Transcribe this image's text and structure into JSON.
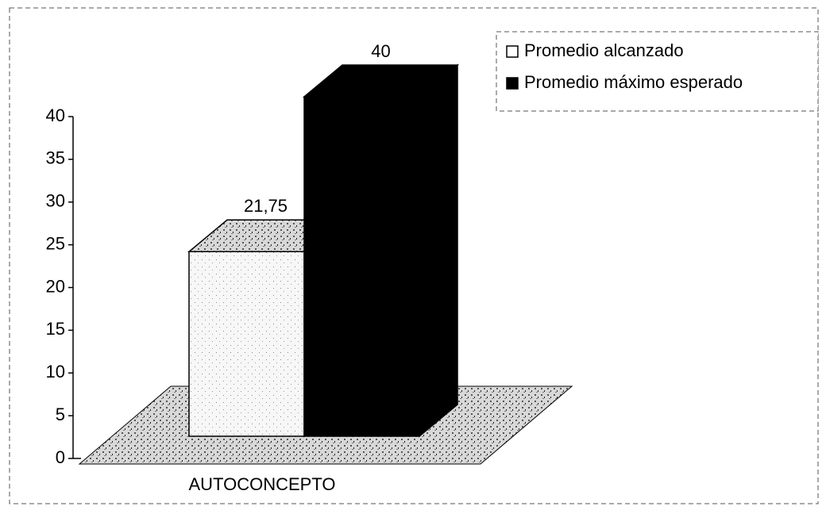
{
  "chart_data": {
    "type": "bar3d",
    "categories": [
      "AUTOCONCEPTO"
    ],
    "series": [
      {
        "name": "Promedio alcanzado",
        "color": "#ffffff",
        "values": [
          21.75
        ],
        "value_labels": [
          "21,75"
        ]
      },
      {
        "name": "Promedio máximo esperado",
        "color": "#000000",
        "values": [
          40
        ]
      }
    ],
    "ylim": [
      0,
      40
    ],
    "yticks": [
      0,
      5,
      10,
      15,
      20,
      25,
      30,
      35,
      40
    ],
    "legend": "top-right"
  }
}
